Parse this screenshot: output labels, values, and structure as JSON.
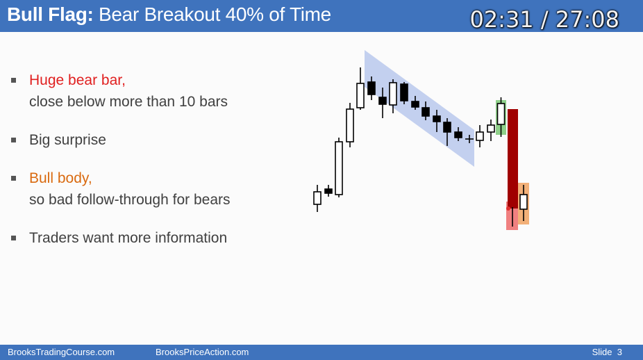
{
  "header": {
    "title_strong": "Bull Flag:",
    "title_rest": "Bear Breakout 40% of Time",
    "timer": "02:31 / 27:08"
  },
  "bullets": [
    {
      "line1": "Huge bear bar,",
      "line2": "close below more than 10 bars",
      "color": "#e02020"
    },
    {
      "line1": "Big surprise"
    },
    {
      "line1": "Bull body,",
      "line2": "so bad follow-through for bears",
      "color": "#d96a10"
    },
    {
      "line1": "Traders want more information"
    }
  ],
  "footer": {
    "site1": "BrooksTradingCourse.com",
    "site2": "BrooksPriceAction.com",
    "slide_label": "Slide",
    "slide_number": "3"
  },
  "colors": {
    "header_bg": "#3f73bd",
    "flag_channel": "#b8c8ec",
    "bear_bar": "#a00000",
    "bear_bar_highlight": "#f08080",
    "bull_highlight_green": "#8fd08a",
    "bull_highlight_orange": "#f2b078"
  }
}
